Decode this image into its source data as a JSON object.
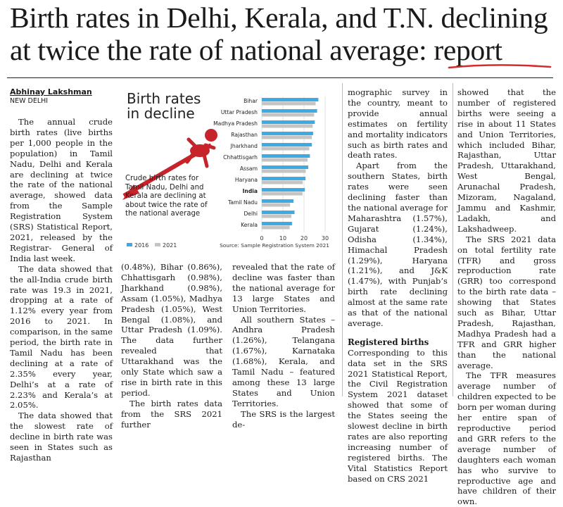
{
  "headline": {
    "line1": "Birth rates in Delhi, Kerala, and T.N. declining",
    "line2": "at twice the rate of national average: report",
    "underline_color": "#d22d2d"
  },
  "byline": {
    "author": "Abhinay Lakshman",
    "dateline": "NEW DELHI"
  },
  "columns": {
    "col1": [
      "The annual crude birth rates (live births per 1,000 people in the population) in Tamil Nadu, Delhi and Kerala are declining at twice the rate of the national average, showed data from the Sample Registration System (SRS) Statistical Report, 2021, released by the Registrar- General of India last week.",
      "The data showed that the all-India crude birth rate was 19.3 in 2021, dropping at a rate of 1.12% every year from 2016 to 2021. In comparison, in the same period, the birth rate in Tamil Nadu has been declining at a rate of 2.35% every year, Delhi’s at a rate of 2.23% and Kerala’s at 2.05%.",
      "The data showed that the slowest rate of decline in birth rate was seen in States such as Rajasthan"
    ],
    "col2": [
      "(0.48%), Bihar (0.86%), Chhattisgarh (0.98%), Jharkhand (0.98%), Assam (1.05%), Madhya Pradesh (1.05%), West Bengal (1.08%), and Uttar Pradesh (1.09%). The data further revealed that Uttarakhand was the only State which saw a rise in birth rate in this period.",
      "The birth rates data from the SRS 2021 further"
    ],
    "col3": [
      "revealed that the rate of decline was faster than the national average for 13 large States and Union Territories.",
      "All southern States – Andhra Pradesh (1.26%), Telangana (1.67%), Karnataka (1.68%), Kerala, and Tamil Nadu – featured among these 13 large States and Union Territories.",
      "The SRS is the largest de-"
    ],
    "col4": [
      "mographic survey in the country, meant to provide annual estimates on fertility and mortality indicators such as birth rates and death rates.",
      "Apart from the southern States, birth rates were seen declining faster than the national average for Maharashtra (1.57%), Gujarat (1.24%), Odisha (1.34%), Himachal Pradesh (1.29%), Haryana (1.21%), and J&K (1.47%), with Punjab’s birth rate declining almost at the same rate as that of the national average."
    ],
    "col4_subhead": "Registered births",
    "col4_after": [
      "Corresponding to this data set in the SRS 2021 Statistical Report, the Civil Registration System 2021 dataset showed that some of the States seeing the slowest decline in birth rates are also reporting increasing number of registered births. The Vital Statistics Report based on CRS 2021"
    ],
    "col5": [
      "showed that the number of registered births were seeing a rise in about 11 States and Union Territories, which included Bihar, Rajasthan, Uttar Pradesh, Uttarakhand, West Bengal, Arunachal Pradesh, Mizoram, Nagaland, Jammu and Kashmir, Ladakh, and Lakshadweep.",
      "The SRS 2021 data on total fertility rate (TFR) and gross reproduction rate (GRR) too correspond to the birth rate data – showing that States such as Bihar, Uttar Pradesh, Rajasthan, Madhya Pradesh had a TFR and GRR higher than the national average.",
      "The TFR measures average number of children expected to be born per woman during her entire span of reproductive period and GRR refers to the average number of daughters each woman has who survive to reproductive age and have children of their own."
    ]
  },
  "chart_data": {
    "type": "bar",
    "orientation": "horizontal",
    "title": "Birth rates in decline",
    "note": "Crude birth rates for Tamil Nadu, Delhi and Kerala are declining at about twice the rate of the national average",
    "source": "Source: Sample Registration System 2021",
    "categories": [
      "Bihar",
      "Uttar Pradesh",
      "Madhya Pradesh",
      "Rajasthan",
      "Jharkhand",
      "Chhattisgarh",
      "Assam",
      "Haryana",
      "India",
      "Tamil Nadu",
      "Delhi",
      "Kerala"
    ],
    "highlight": "India",
    "series": [
      {
        "name": "2016",
        "color": "#3fa9e0",
        "values": [
          26.8,
          26.2,
          25.1,
          24.3,
          23.7,
          22.8,
          22.0,
          20.7,
          20.4,
          15.0,
          15.5,
          14.3
        ]
      },
      {
        "name": "2021",
        "color": "#c4c4c4",
        "values": [
          25.5,
          24.8,
          24.1,
          23.7,
          22.5,
          21.7,
          20.8,
          19.4,
          19.3,
          13.4,
          14.0,
          13.2
        ]
      }
    ],
    "xticks": [
      0,
      10,
      20,
      30
    ],
    "xlim": [
      0,
      30
    ],
    "grid": true,
    "legend_position": "bottom-left"
  }
}
